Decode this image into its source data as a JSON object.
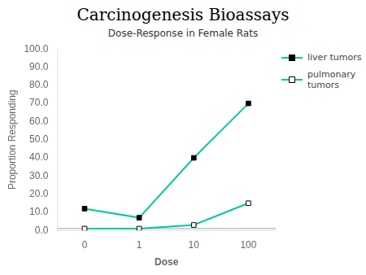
{
  "chart_data": {
    "type": "line",
    "title": "Carcinogenesis Bioassays",
    "subtitle": "Dose-Response in Female Rats",
    "xlabel": "Dose",
    "ylabel": "Proportion Responding",
    "categories": [
      "0",
      "1",
      "10",
      "100"
    ],
    "series": [
      {
        "name": "liver tumors",
        "color": "#00c8a0",
        "marker": "filled_square",
        "values": [
          12,
          7,
          40,
          70
        ]
      },
      {
        "name": "pulmonary\ntumors",
        "color": "#00c8a0",
        "marker": "open_square",
        "values": [
          1,
          1,
          3,
          15
        ]
      }
    ],
    "ylim": [
      0,
      100
    ],
    "yticks": [
      {
        "value": 0,
        "label": "0.0"
      },
      {
        "value": 10,
        "label": "10.0"
      },
      {
        "value": 20,
        "label": "20.0"
      },
      {
        "value": 30,
        "label": "30.0"
      },
      {
        "value": 40,
        "label": "40.0"
      },
      {
        "value": 50,
        "label": "50.0"
      },
      {
        "value": 60,
        "label": "60.0"
      },
      {
        "value": 70,
        "label": "70.0"
      },
      {
        "value": 80,
        "label": "80.0"
      },
      {
        "value": 90,
        "label": "90.0"
      },
      {
        "value": 100,
        "label": "100.0"
      }
    ],
    "grid": false,
    "legend": "right",
    "reference_lines": [
      {
        "value": 1.0,
        "color": "#a0a0a0"
      }
    ]
  }
}
